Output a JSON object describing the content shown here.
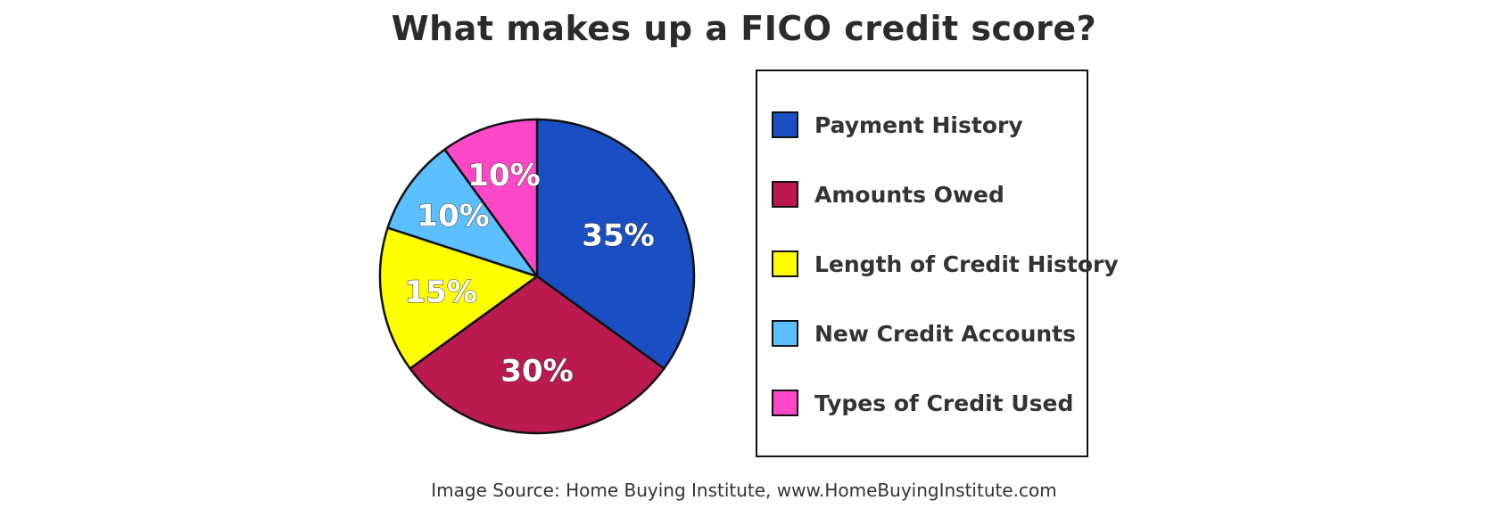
{
  "chart_data": {
    "type": "pie",
    "title": "What makes up a FICO credit score?",
    "slices": [
      {
        "label": "Payment History",
        "value": 35,
        "display": "35%",
        "color": "#1a4fc4"
      },
      {
        "label": "Amounts Owed",
        "value": 30,
        "display": "30%",
        "color": "#bb1a4e"
      },
      {
        "label": "Length of Credit History",
        "value": 15,
        "display": "15%",
        "color": "#ffff00"
      },
      {
        "label": "New Credit Accounts",
        "value": 10,
        "display": "10%",
        "color": "#5cbfff"
      },
      {
        "label": "Types of Credit Used",
        "value": 10,
        "display": "10%",
        "color": "#ff48c8"
      }
    ],
    "legend_position": "right",
    "source": "Image Source: Home Buying Institute, www.HomeBuyingInstitute.com"
  }
}
